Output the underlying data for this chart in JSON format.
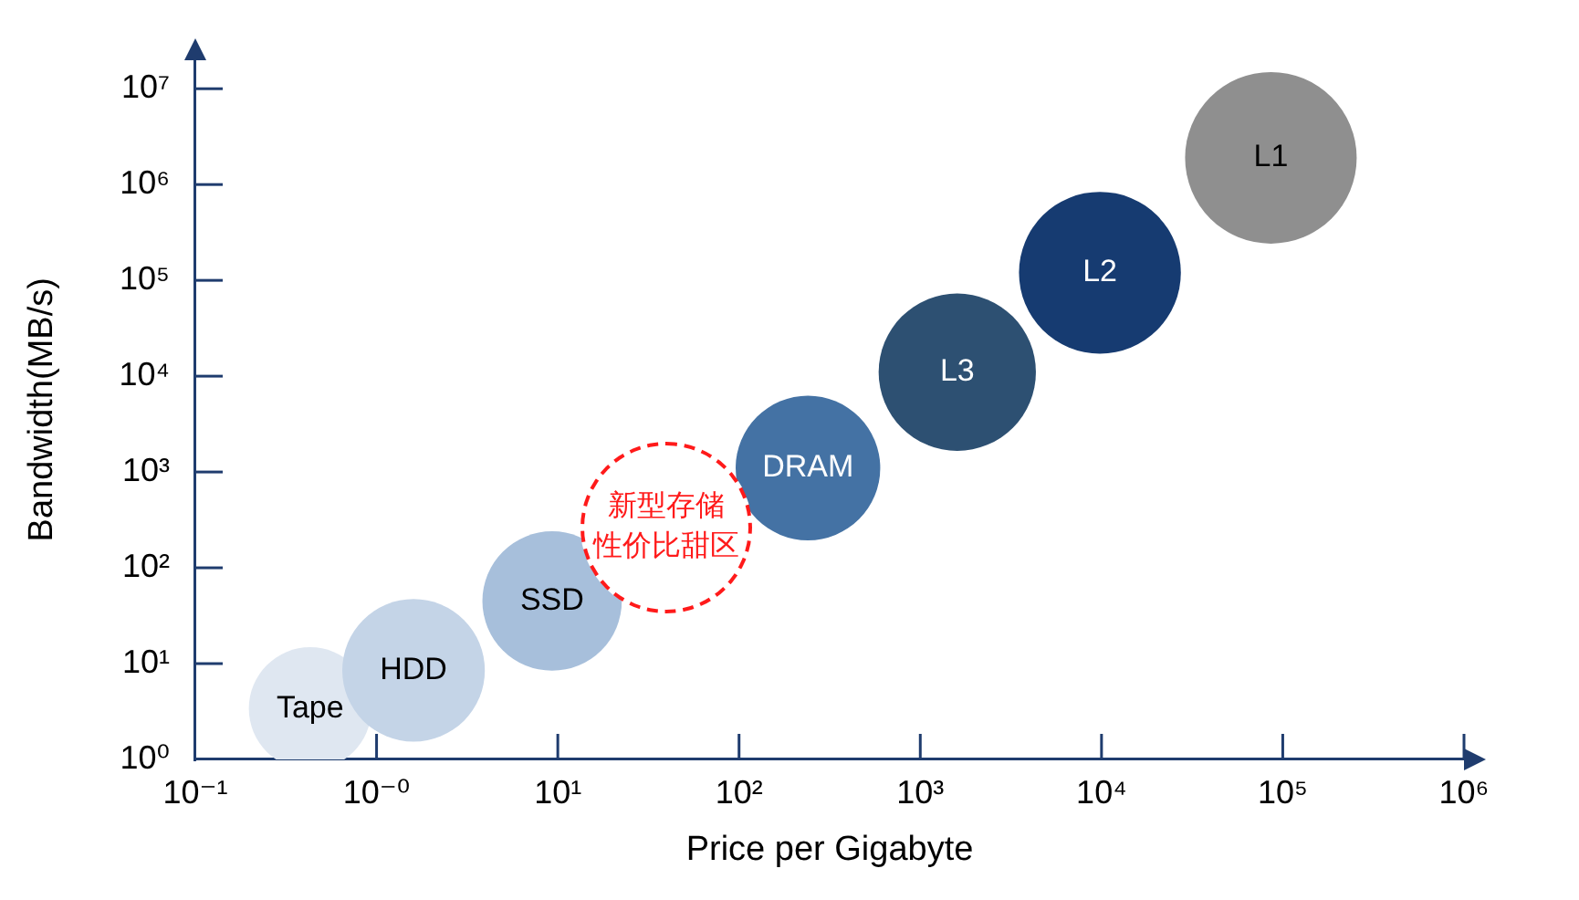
{
  "chart_data": {
    "type": "bubble",
    "xlabel": "Price per Gigabyte",
    "ylabel": "Bandwidth(MB/s)",
    "log": "xy",
    "xlim": [
      0.1,
      1000000
    ],
    "xticks": [
      {
        "value": 0.1,
        "label": "10⁻¹"
      },
      {
        "value": 1,
        "label": "10⁻⁰"
      },
      {
        "value": 10,
        "label": "10¹"
      },
      {
        "value": 100,
        "label": "10²"
      },
      {
        "value": 1000,
        "label": "10³"
      },
      {
        "value": 10000,
        "label": "10⁴"
      },
      {
        "value": 100000,
        "label": "10⁵"
      },
      {
        "value": 1000000,
        "label": "10⁶"
      }
    ],
    "ylim": [
      1,
      20000000
    ],
    "yticks": [
      {
        "value": 1,
        "label": "10⁰"
      },
      {
        "value": 10,
        "label": "10¹"
      },
      {
        "value": 100,
        "label": "10²"
      },
      {
        "value": 1000,
        "label": "10³"
      },
      {
        "value": 10000,
        "label": "10⁴"
      },
      {
        "value": 100000,
        "label": "10⁵"
      },
      {
        "value": 1000000,
        "label": "10⁶"
      },
      {
        "value": 10000000,
        "label": "10⁷"
      }
    ],
    "series": [
      {
        "name": "Tape",
        "color": "#dfe7f1",
        "x": [
          0.43
        ],
        "values": [
          3.4
        ],
        "sizes": [
          0.51
        ]
      },
      {
        "name": "HDD",
        "color": "#c4d4e7",
        "x": [
          1.6
        ],
        "values": [
          8.5
        ],
        "sizes": [
          0.69
        ]
      },
      {
        "name": "SSD",
        "color": "#a7bfdb",
        "x": [
          9.3
        ],
        "values": [
          45
        ],
        "sizes": [
          0.66
        ]
      },
      {
        "name": "DRAM",
        "color": "#4472a4",
        "x": [
          240
        ],
        "values": [
          1100
        ],
        "sizes": [
          0.71
        ]
      },
      {
        "name": "L3",
        "color": "#2d5072",
        "x": [
          1600
        ],
        "values": [
          11000
        ],
        "sizes": [
          0.84
        ]
      },
      {
        "name": "L2",
        "color": "#163b71",
        "x": [
          9800
        ],
        "values": [
          120000
        ],
        "sizes": [
          0.89
        ]
      },
      {
        "name": "L1",
        "color": "#8f8f8f",
        "x": [
          86000
        ],
        "values": [
          1900000
        ],
        "sizes": [
          1
        ]
      }
    ],
    "annotations": [
      "新型存储性价比甜区"
    ]
  }
}
